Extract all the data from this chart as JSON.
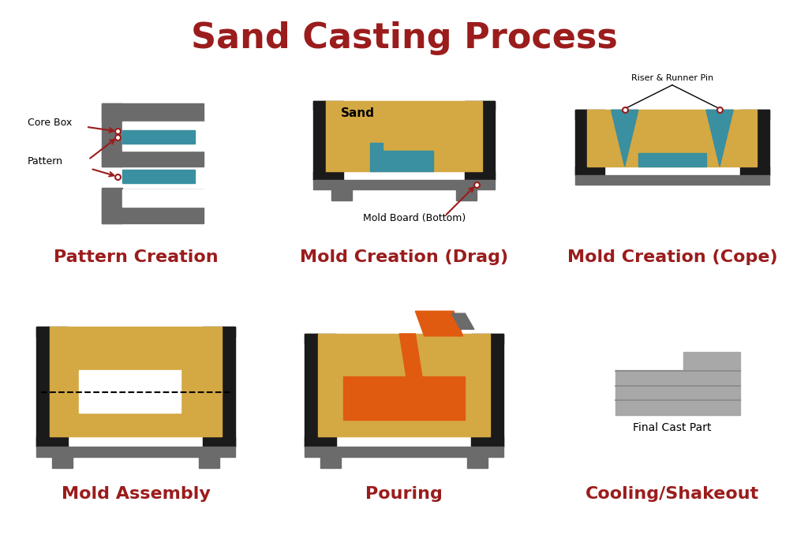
{
  "title": "Sand Casting Process",
  "title_color": "#9B1C1C",
  "title_fontsize": 32,
  "bg_color": "#FFFFFF",
  "cell_labels": [
    "Pattern Creation",
    "Mold Creation (Drag)",
    "Mold Creation (Cope)",
    "Mold Assembly",
    "Pouring",
    "Cooling/Shakeout"
  ],
  "label_color": "#9B1C1C",
  "label_fontsize": 16,
  "sand_color": "#D4A843",
  "teal_color": "#3A8FA0",
  "gray_color": "#6B6B6B",
  "black_color": "#1A1A1A",
  "orange_color": "#E05A10",
  "red_color": "#9B1C1C",
  "white_color": "#FFFFFF",
  "silver_color": "#A8A8A8"
}
